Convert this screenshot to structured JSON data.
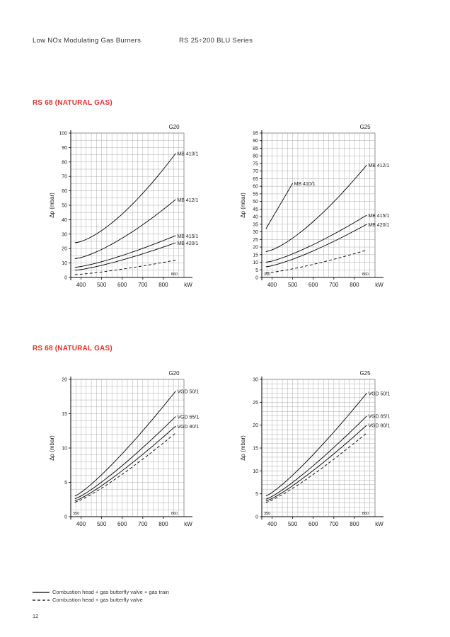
{
  "header": {
    "left": "Low NOx Modulating Gas Burners",
    "right": "RS 25÷200 BLU Series"
  },
  "sections": [
    {
      "title": "RS 68 (NATURAL GAS)"
    },
    {
      "title": "RS 68 (NATURAL GAS)"
    }
  ],
  "legend": {
    "solid": "Combustion head + gas butterfly valve + gas train",
    "dashed": "Combustion head + gas butterfly valve"
  },
  "page_number": "12",
  "chart_data": [
    {
      "type": "line",
      "gas": "G20",
      "xunit": "kW",
      "ylabel": "Δp (mbar)",
      "xlim": [
        350,
        900
      ],
      "ylim": [
        0,
        100
      ],
      "xticks": [
        400,
        500,
        600,
        700,
        800
      ],
      "yticks": [
        0,
        10,
        20,
        30,
        40,
        50,
        60,
        70,
        80,
        90,
        100
      ],
      "min_label": "",
      "max_label": "860",
      "grid": true,
      "series": [
        {
          "name": "MB 410/1",
          "style": "solid",
          "x": [
            370,
            860
          ],
          "y": [
            24,
            86
          ],
          "curve": 1.5,
          "label_at": "end"
        },
        {
          "name": "MB 412/1",
          "style": "solid",
          "x": [
            370,
            860
          ],
          "y": [
            13,
            54
          ],
          "curve": 1.4,
          "label_at": "end"
        },
        {
          "name": "MB 415/1",
          "style": "solid",
          "x": [
            370,
            860
          ],
          "y": [
            7,
            29
          ],
          "curve": 1.3,
          "label_at": "end"
        },
        {
          "name": "MB 420/1",
          "style": "solid",
          "x": [
            370,
            860
          ],
          "y": [
            5,
            24
          ],
          "curve": 1.3,
          "label_at": "end"
        },
        {
          "name": "",
          "style": "dashed",
          "x": [
            370,
            860
          ],
          "y": [
            2,
            12
          ],
          "curve": 1.3
        }
      ]
    },
    {
      "type": "line",
      "gas": "G25",
      "xunit": "kW",
      "ylabel": "Δp (mbar)",
      "xlim": [
        350,
        900
      ],
      "ylim": [
        0,
        95
      ],
      "xticks": [
        400,
        500,
        600,
        700,
        800
      ],
      "yticks": [
        0,
        5,
        10,
        15,
        20,
        25,
        30,
        35,
        40,
        45,
        50,
        55,
        60,
        65,
        70,
        75,
        80,
        85,
        90,
        95
      ],
      "min_label": "350",
      "max_label": "860",
      "grid": true,
      "series": [
        {
          "name": "MB 410/1",
          "style": "solid",
          "x": [
            370,
            500
          ],
          "y": [
            32,
            62
          ],
          "curve": 1.0,
          "label_at": "end"
        },
        {
          "name": "MB 412/1",
          "style": "solid",
          "x": [
            370,
            860
          ],
          "y": [
            17,
            74
          ],
          "curve": 1.4,
          "label_at": "end"
        },
        {
          "name": "MB 415/1",
          "style": "solid",
          "x": [
            370,
            860
          ],
          "y": [
            10,
            41
          ],
          "curve": 1.3,
          "label_at": "end"
        },
        {
          "name": "MB 420/1",
          "style": "solid",
          "x": [
            370,
            860
          ],
          "y": [
            7,
            35
          ],
          "curve": 1.3,
          "label_at": "end"
        },
        {
          "name": "",
          "style": "dashed",
          "x": [
            370,
            860
          ],
          "y": [
            3,
            18
          ],
          "curve": 1.3
        }
      ]
    },
    {
      "type": "line",
      "gas": "G20",
      "xunit": "kW",
      "ylabel": "Δp (mbar)",
      "xlim": [
        350,
        900
      ],
      "ylim": [
        0,
        20
      ],
      "xticks": [
        400,
        500,
        600,
        700,
        800
      ],
      "yticks": [
        0,
        5,
        10,
        15,
        20
      ],
      "min_label": "350",
      "max_label": "860",
      "grid": true,
      "series": [
        {
          "name": "VGD 50/1",
          "style": "solid",
          "x": [
            370,
            860
          ],
          "y": [
            3,
            18.3
          ],
          "curve": 1.2,
          "label_at": "end"
        },
        {
          "name": "VGD 65/1",
          "style": "solid",
          "x": [
            370,
            860
          ],
          "y": [
            2.6,
            14.6
          ],
          "curve": 1.2,
          "label_at": "end"
        },
        {
          "name": "VGD 80/1",
          "style": "solid",
          "x": [
            370,
            860
          ],
          "y": [
            2.3,
            13.2
          ],
          "curve": 1.2,
          "label_at": "end"
        },
        {
          "name": "",
          "style": "dashed",
          "x": [
            370,
            860
          ],
          "y": [
            2.1,
            12.2
          ],
          "curve": 1.2
        }
      ]
    },
    {
      "type": "line",
      "gas": "G25",
      "xunit": "kW",
      "ylabel": "Δp (mbar)",
      "xlim": [
        350,
        900
      ],
      "ylim": [
        0,
        30
      ],
      "xticks": [
        400,
        500,
        600,
        700,
        800
      ],
      "yticks": [
        0,
        5,
        10,
        15,
        20,
        25,
        30
      ],
      "min_label": "350",
      "max_label": "860",
      "grid": true,
      "series": [
        {
          "name": "VGD 50/1",
          "style": "solid",
          "x": [
            370,
            860
          ],
          "y": [
            4.5,
            27
          ],
          "curve": 1.2,
          "label_at": "end"
        },
        {
          "name": "VGD 65/1",
          "style": "solid",
          "x": [
            370,
            860
          ],
          "y": [
            3.8,
            22
          ],
          "curve": 1.2,
          "label_at": "end"
        },
        {
          "name": "VGD 80/1",
          "style": "solid",
          "x": [
            370,
            860
          ],
          "y": [
            3.4,
            20
          ],
          "curve": 1.2,
          "label_at": "end"
        },
        {
          "name": "",
          "style": "dashed",
          "x": [
            370,
            860
          ],
          "y": [
            3.1,
            18.3
          ],
          "curve": 1.2
        }
      ]
    }
  ]
}
